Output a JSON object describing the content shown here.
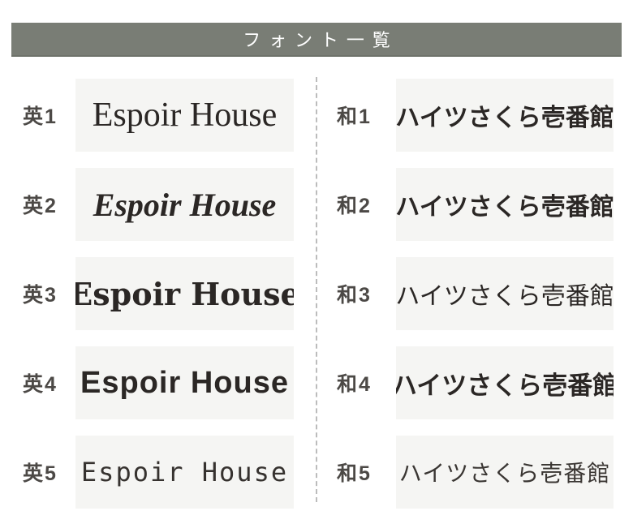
{
  "header": {
    "title": "フォント一覧"
  },
  "columns": {
    "left": {
      "sample_text": "Espoir House",
      "rows": [
        {
          "label": "英1",
          "font_style": "serif-regular"
        },
        {
          "label": "英2",
          "font_style": "serif-bold-italic"
        },
        {
          "label": "英3",
          "font_style": "serif-bold"
        },
        {
          "label": "英4",
          "font_style": "geometric-sans-bold"
        },
        {
          "label": "英5",
          "font_style": "rounded-handwriting-light"
        }
      ]
    },
    "right": {
      "sample_text": "ハイツさくら壱番館",
      "rows": [
        {
          "label": "和1",
          "font_style": "gothic"
        },
        {
          "label": "和2",
          "font_style": "rounded-gothic-bold"
        },
        {
          "label": "和3",
          "font_style": "mincho"
        },
        {
          "label": "和4",
          "font_style": "gothic-bold"
        },
        {
          "label": "和5",
          "font_style": "handwriting-thin"
        }
      ]
    }
  },
  "colors": {
    "header_bg": "#797d75",
    "header_fg": "#ffffff",
    "sample_box_bg": "#f5f5f3",
    "sample_text": "#2b2725",
    "label_text": "#4c4946",
    "divider": "#bcbcbc",
    "page_bg": "#ffffff"
  }
}
